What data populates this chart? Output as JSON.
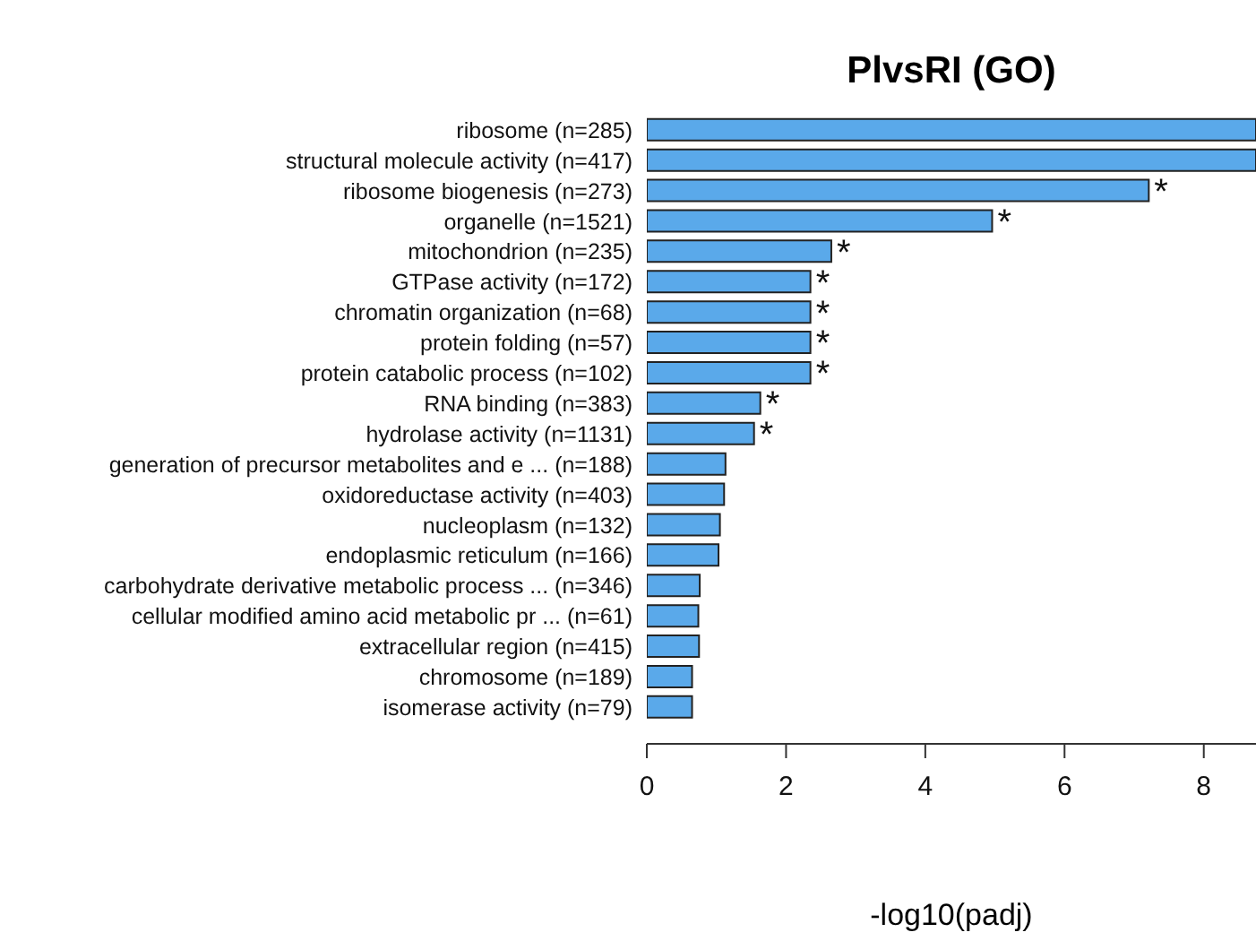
{
  "chart_data": {
    "type": "bar",
    "orientation": "horizontal",
    "title": "PlvsRI (GO)",
    "xlabel": "-log10(padj)",
    "categories": [
      "ribosome (n=285)",
      "structural molecule activity (n=417)",
      "ribosome biogenesis (n=273)",
      "organelle (n=1521)",
      "mitochondrion (n=235)",
      "GTPase activity (n=172)",
      "chromatin organization (n=68)",
      "protein folding (n=57)",
      "protein catabolic process (n=102)",
      "RNA binding (n=383)",
      "hydrolase activity (n=1131)",
      "generation of precursor metabolites and e ... (n=188)",
      "oxidoreductase activity (n=403)",
      "nucleoplasm (n=132)",
      "endoplasmic reticulum (n=166)",
      "carbohydrate derivative metabolic process ... (n=346)",
      "cellular modified amino acid metabolic pr ... (n=61)",
      "extracellular region (n=415)",
      "chromosome (n=189)",
      "isomerase activity (n=79)"
    ],
    "values": [
      8.75,
      8.75,
      7.21,
      4.96,
      2.65,
      2.35,
      2.35,
      2.35,
      2.35,
      1.63,
      1.54,
      1.13,
      1.11,
      1.05,
      1.03,
      0.76,
      0.74,
      0.75,
      0.65,
      0.65
    ],
    "color": "#5aa9ea",
    "xlim": [
      0,
      8.75
    ],
    "xticks": [
      0,
      2,
      4,
      6,
      8
    ],
    "grid": false,
    "annotations": [
      {
        "text": "*",
        "x": 7.21,
        "y": "ribosome biogenesis (n=273)"
      },
      {
        "text": "*",
        "x": 4.96,
        "y": "organelle (n=1521)"
      },
      {
        "text": "*",
        "x": 2.65,
        "y": "mitochondrion (n=235)"
      },
      {
        "text": "*",
        "x": 2.35,
        "y": "GTPase activity (n=172)"
      },
      {
        "text": "*",
        "x": 2.35,
        "y": "chromatin organization (n=68)"
      },
      {
        "text": "*",
        "x": 2.35,
        "y": "protein folding (n=57)"
      },
      {
        "text": "*",
        "x": 2.35,
        "y": "protein catabolic process (n=102)"
      },
      {
        "text": "*",
        "x": 1.63,
        "y": "RNA binding (n=383)"
      },
      {
        "text": "*",
        "x": 1.54,
        "y": "hydrolase activity (n=1131)"
      }
    ]
  }
}
